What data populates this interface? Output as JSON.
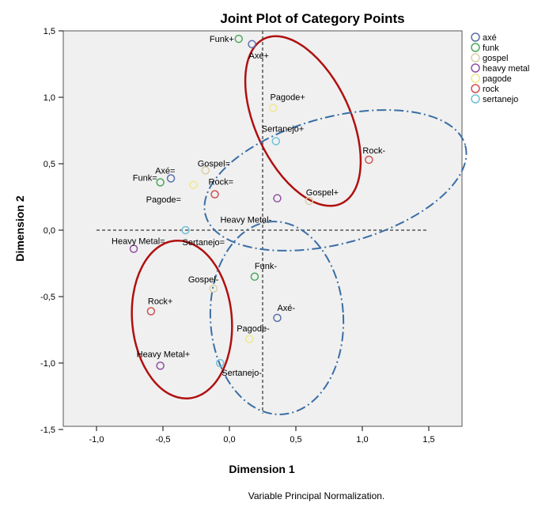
{
  "chart_data": {
    "type": "scatter",
    "title": "Joint Plot of Category Points",
    "xlabel": "Dimension 1",
    "ylabel": "Dimension 2",
    "xlim": [
      -1.25,
      2.35
    ],
    "ylim": [
      -1.5,
      1.5
    ],
    "x_ticks": [
      "-1,0",
      "-0,5",
      "0,0",
      "0,5",
      "1,0",
      "1,5"
    ],
    "y_ticks": [
      "1,5",
      "1,0",
      "0,5",
      "0,0",
      "-0,5",
      "-1,0",
      "-1,5"
    ],
    "x_tick_values": [
      -1.0,
      -0.5,
      0.0,
      0.5,
      1.0,
      1.5
    ],
    "y_tick_values": [
      1.5,
      1.0,
      0.5,
      0.0,
      -0.5,
      -1.0,
      -1.5
    ],
    "legend_placement": "right-outside",
    "footnote": "Variable Principal Normalization.",
    "series": [
      {
        "name": "axé",
        "color": "#5b6fa8",
        "points": [
          {
            "label": "Axé+",
            "x": 0.17,
            "y": 1.4
          },
          {
            "label": "Axé=",
            "x": -0.44,
            "y": 0.39
          },
          {
            "label": "Axé-",
            "x": 0.36,
            "y": -0.66
          }
        ]
      },
      {
        "name": "funk",
        "color": "#4aa85a",
        "points": [
          {
            "label": "Funk+",
            "x": 0.07,
            "y": 1.44
          },
          {
            "label": "Funk=",
            "x": -0.52,
            "y": 0.36
          },
          {
            "label": "Funk-",
            "x": 0.19,
            "y": -0.35
          }
        ]
      },
      {
        "name": "gospel",
        "color": "#d8d0a8",
        "points": [
          {
            "label": "Gospel+",
            "x": 0.6,
            "y": 0.22
          },
          {
            "label": "Gospel=",
            "x": -0.18,
            "y": 0.45
          },
          {
            "label": "Gospel-",
            "x": -0.12,
            "y": -0.44
          }
        ]
      },
      {
        "name": "heavy metal",
        "color": "#9050a0",
        "points": [
          {
            "label": "Heavy Metal+",
            "x": -0.52,
            "y": -1.02
          },
          {
            "label": "Heavy Metal=",
            "x": -0.72,
            "y": -0.14
          },
          {
            "label": "Heavy Metal-",
            "x": 0.36,
            "y": 0.24
          }
        ]
      },
      {
        "name": "pagode",
        "color": "#f0e890",
        "points": [
          {
            "label": "Pagode+",
            "x": 0.33,
            "y": 0.92
          },
          {
            "label": "Pagode=",
            "x": -0.27,
            "y": 0.34
          },
          {
            "label": "Pagode-",
            "x": 0.15,
            "y": -0.82
          }
        ]
      },
      {
        "name": "rock",
        "color": "#d05050",
        "points": [
          {
            "label": "Rock+",
            "x": -0.59,
            "y": -0.61
          },
          {
            "label": "Rock=",
            "x": -0.11,
            "y": 0.27
          },
          {
            "label": "Rock-",
            "x": 1.05,
            "y": 0.53
          }
        ]
      },
      {
        "name": "sertanejo",
        "color": "#70c0d8",
        "points": [
          {
            "label": "Sertanejo+",
            "x": 0.35,
            "y": 0.67
          },
          {
            "label": "Sertanejo=",
            "x": -0.33,
            "y": 0.0
          },
          {
            "label": "Sertanejo-",
            "x": -0.07,
            "y": -1.0
          }
        ]
      }
    ]
  }
}
